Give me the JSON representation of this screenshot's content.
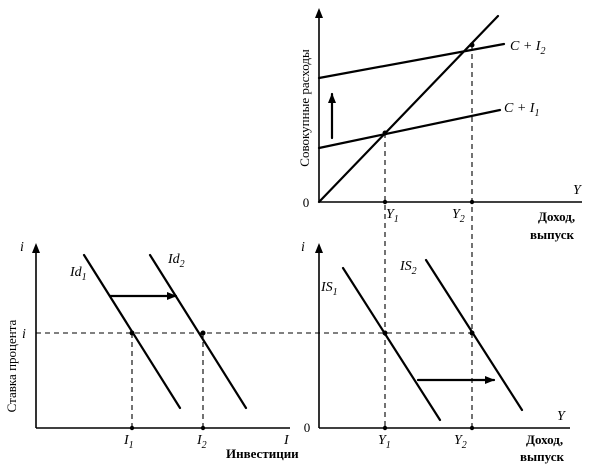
{
  "top_panel": {
    "y_axis_title": "Совокупные расходы",
    "x_axis_symbol": "Y",
    "x_axis_title_line1": "Доход,",
    "x_axis_title_line2": "выпуск",
    "origin_label": "0",
    "curve_upper": {
      "base": "C + I",
      "sub": "2"
    },
    "curve_lower": {
      "base": "C + I",
      "sub": "1"
    },
    "tick_1": {
      "base": "Y",
      "sub": "1"
    },
    "tick_2": {
      "base": "Y",
      "sub": "2"
    }
  },
  "bottom_left_panel": {
    "y_axis_symbol": "i",
    "y_axis_title": "Ставка процента",
    "x_axis_symbol": "I",
    "x_axis_title": "Инвестиции",
    "rate_label": "i",
    "curve_1": {
      "base": "Id",
      "sub": "1"
    },
    "curve_2": {
      "base": "Id",
      "sub": "2"
    },
    "tick_1": {
      "base": "I",
      "sub": "1"
    },
    "tick_2": {
      "base": "I",
      "sub": "2"
    }
  },
  "bottom_right_panel": {
    "y_axis_symbol": "i",
    "x_axis_symbol": "Y",
    "x_axis_title_line1": "Доход,",
    "x_axis_title_line2": "выпуск",
    "origin_label": "0",
    "curve_1": {
      "base": "IS",
      "sub": "1"
    },
    "curve_2": {
      "base": "IS",
      "sub": "2"
    },
    "tick_1": {
      "base": "Y",
      "sub": "1"
    },
    "tick_2": {
      "base": "Y",
      "sub": "2"
    }
  }
}
